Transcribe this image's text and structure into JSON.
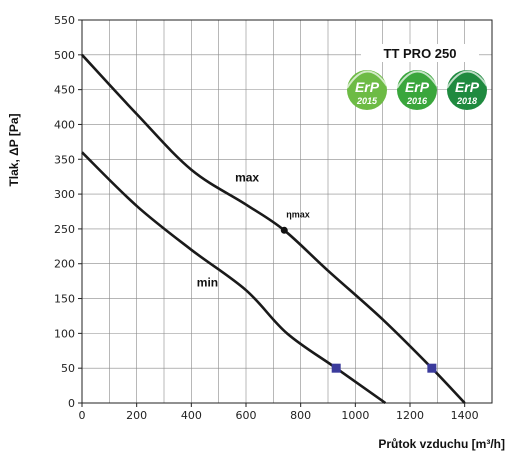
{
  "chart_data": {
    "type": "line",
    "xlabel": "Průtok vzduchu [m³/h]",
    "ylabel": "Tlak, ΔP [Pa]",
    "xlim": [
      0,
      1500
    ],
    "ylim": [
      0,
      550
    ],
    "x_ticks": [
      0,
      200,
      400,
      600,
      800,
      1000,
      1200,
      1400
    ],
    "y_ticks": [
      0,
      50,
      100,
      150,
      200,
      250,
      300,
      350,
      400,
      450,
      500,
      550
    ],
    "grid": true,
    "series": [
      {
        "name": "max",
        "color": "#1a1a1a",
        "points": [
          [
            0,
            500
          ],
          [
            200,
            415
          ],
          [
            400,
            335
          ],
          [
            600,
            285
          ],
          [
            740,
            248
          ],
          [
            900,
            190
          ],
          [
            1100,
            120
          ],
          [
            1280,
            50
          ],
          [
            1400,
            0
          ]
        ]
      },
      {
        "name": "min",
        "color": "#1a1a1a",
        "points": [
          [
            0,
            360
          ],
          [
            200,
            283
          ],
          [
            400,
            220
          ],
          [
            600,
            162
          ],
          [
            750,
            100
          ],
          [
            930,
            50
          ],
          [
            1110,
            0
          ]
        ]
      }
    ],
    "annotations": [
      {
        "text": "ηmax",
        "x": 740,
        "y": 248,
        "marker": "dot"
      }
    ],
    "markers": [
      {
        "x": 930,
        "y": 50,
        "shape": "square",
        "color": "#3b3b9c"
      },
      {
        "x": 1280,
        "y": 50,
        "shape": "square",
        "color": "#3b3b9c"
      }
    ],
    "model_title": "TT PRO 250",
    "badges": [
      {
        "label": "ErP",
        "year": "2015",
        "color": "#6dbb45"
      },
      {
        "label": "ErP",
        "year": "2016",
        "color": "#3aa63c"
      },
      {
        "label": "ErP",
        "year": "2018",
        "color": "#1f8a3f"
      }
    ]
  }
}
